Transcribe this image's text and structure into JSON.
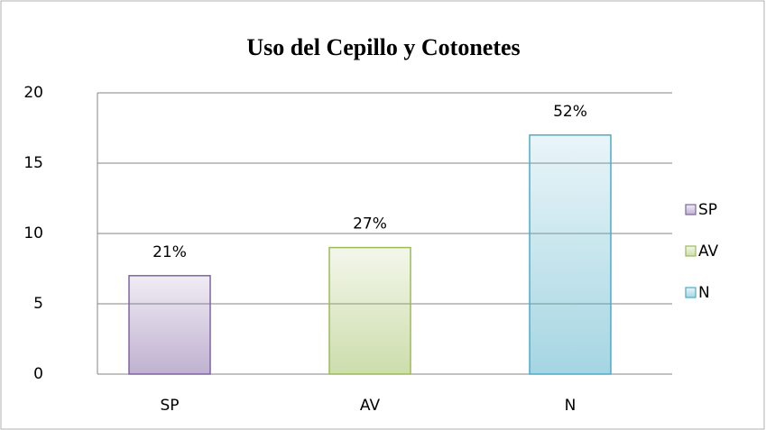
{
  "chart_data": {
    "type": "bar",
    "title": "Uso del Cepillo y Cotonetes",
    "categories": [
      "SP",
      "AV",
      "N"
    ],
    "values": [
      7,
      9,
      17
    ],
    "data_labels": [
      "21%",
      "27%",
      "52%"
    ],
    "colors": [
      "#8064a2",
      "#9bbb59",
      "#4bacc6"
    ],
    "ylim": [
      0,
      20
    ],
    "yticks": [
      0,
      5,
      10,
      15,
      20
    ],
    "grid": true,
    "legend": "right"
  }
}
